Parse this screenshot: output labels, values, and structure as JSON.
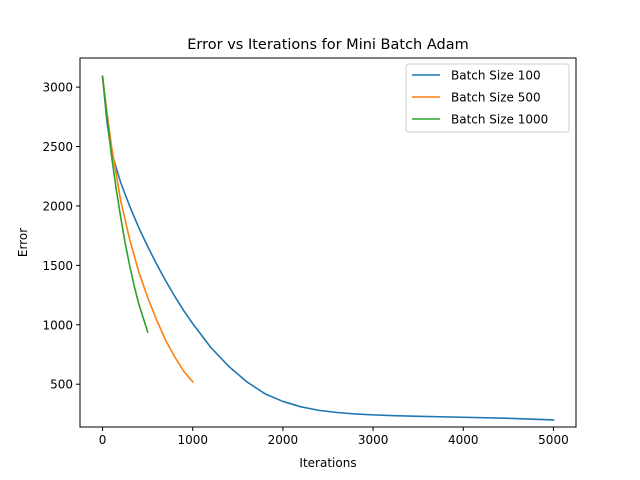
{
  "chart_data": {
    "type": "line",
    "title": "Error vs Iterations for Mini Batch Adam",
    "xlabel": "Iterations",
    "ylabel": "Error",
    "xlim": [
      -250,
      5250
    ],
    "ylim": [
      140,
      3245
    ],
    "xticks": [
      0,
      1000,
      2000,
      3000,
      4000,
      5000
    ],
    "yticks": [
      500,
      1000,
      1500,
      2000,
      2500,
      3000
    ],
    "grid": false,
    "legend_position": "top-right",
    "series": [
      {
        "name": "Batch Size 100",
        "color": "#1f77b4",
        "x": [
          0,
          50,
          100,
          200,
          300,
          400,
          500,
          600,
          700,
          800,
          900,
          1000,
          1200,
          1400,
          1600,
          1800,
          2000,
          2200,
          2400,
          2600,
          2800,
          3000,
          3200,
          3500,
          4000,
          4500,
          5000
        ],
        "y": [
          3090,
          2700,
          2450,
          2200,
          2000,
          1820,
          1660,
          1510,
          1370,
          1240,
          1120,
          1010,
          810,
          650,
          520,
          420,
          355,
          310,
          280,
          262,
          250,
          242,
          236,
          230,
          222,
          213,
          200
        ]
      },
      {
        "name": "Batch Size 500",
        "color": "#ff7f0e",
        "x": [
          0,
          50,
          100,
          200,
          300,
          400,
          500,
          600,
          700,
          800,
          900,
          1000
        ],
        "y": [
          3090,
          2780,
          2500,
          2050,
          1720,
          1450,
          1230,
          1040,
          870,
          730,
          610,
          520
        ]
      },
      {
        "name": "Batch Size 1000",
        "color": "#2ca02c",
        "x": [
          0,
          50,
          100,
          150,
          200,
          250,
          300,
          350,
          400,
          450,
          500
        ],
        "y": [
          3090,
          2740,
          2420,
          2150,
          1910,
          1690,
          1500,
          1330,
          1180,
          1060,
          940
        ]
      }
    ]
  }
}
